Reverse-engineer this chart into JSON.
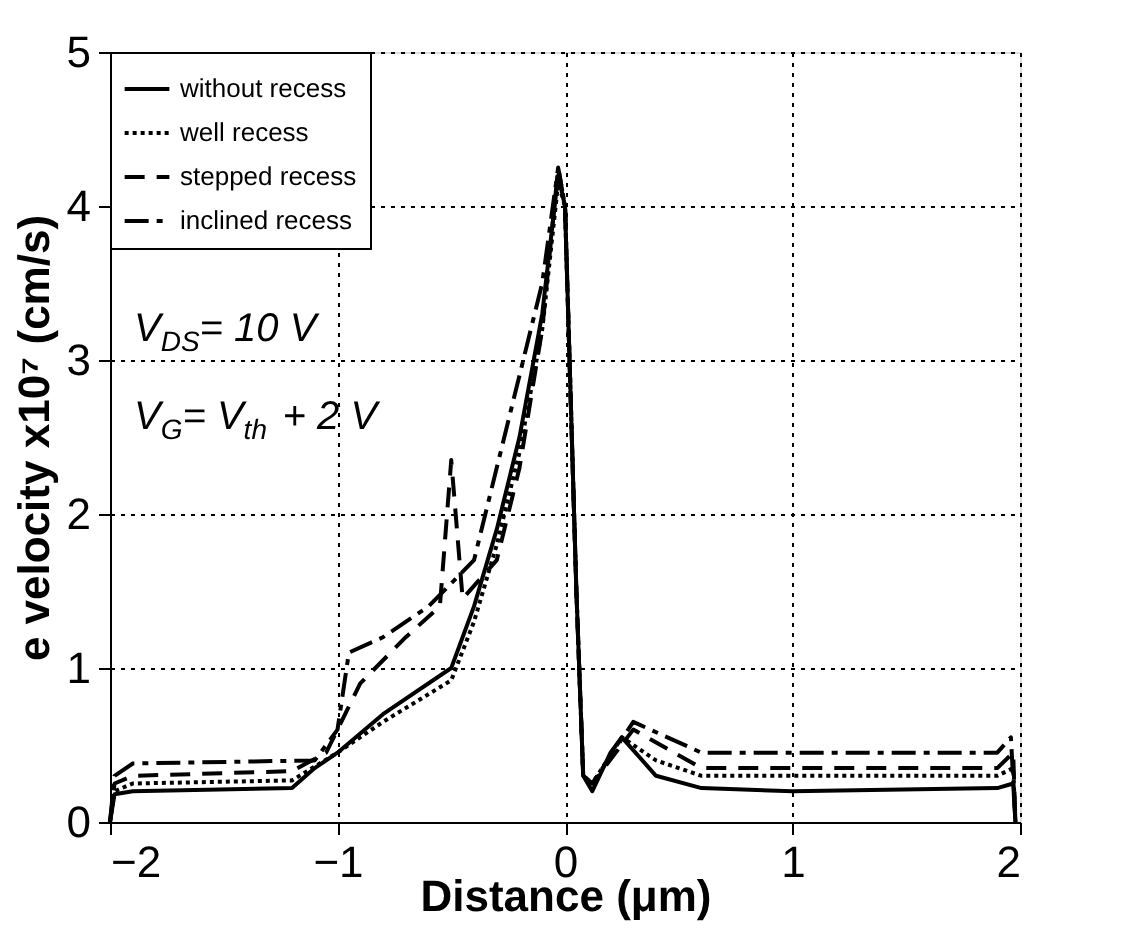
{
  "chart_data": {
    "type": "line",
    "xlabel": "Distance (μm)",
    "ylabel": "e velocity x10⁷ (cm/s)",
    "xlim": [
      -2,
      2
    ],
    "xticks": [
      -2,
      -1,
      0,
      1,
      2
    ],
    "ylim": [
      0,
      5
    ],
    "yticks": [
      0,
      1,
      2,
      3,
      4,
      5
    ],
    "grid": true,
    "legend": "top left",
    "annotations": [
      "V$_{DS}$= 10 V",
      "V$_{G}$= V$_{th}$ + 2 V"
    ],
    "series": [
      {
        "name": "without recess",
        "color": "#000000",
        "line_style": "solid",
        "x": [
          -2,
          -1.98,
          -1.9,
          -1.2,
          -1.1,
          -1.0,
          -0.8,
          -0.5,
          -0.4,
          -0.3,
          -0.2,
          -0.1,
          -0.03,
          0.0,
          0.05,
          0.08,
          0.12,
          0.2,
          0.25,
          0.4,
          0.6,
          1.0,
          1.9,
          1.97,
          1.98
        ],
        "values": [
          0,
          0.18,
          0.2,
          0.22,
          0.35,
          0.45,
          0.7,
          1.0,
          1.4,
          1.9,
          2.5,
          3.3,
          4.2,
          4.0,
          1.5,
          0.3,
          0.2,
          0.45,
          0.55,
          0.3,
          0.22,
          0.2,
          0.22,
          0.25,
          0
        ]
      },
      {
        "name": "well recess",
        "color": "#000000",
        "line_style": "dotted",
        "x": [
          -2,
          -1.98,
          -1.9,
          -1.2,
          -1.0,
          -0.8,
          -0.5,
          -0.4,
          -0.3,
          -0.2,
          -0.1,
          -0.03,
          0.0,
          0.05,
          0.08,
          0.12,
          0.25,
          0.4,
          0.6,
          1.9,
          1.97,
          1.98
        ],
        "values": [
          0,
          0.2,
          0.25,
          0.27,
          0.45,
          0.65,
          0.92,
          1.3,
          1.8,
          2.4,
          3.2,
          4.15,
          4.0,
          1.5,
          0.3,
          0.25,
          0.55,
          0.4,
          0.3,
          0.3,
          0.35,
          0
        ]
      },
      {
        "name": "stepped recess",
        "color": "#000000",
        "line_style": "dashed",
        "x": [
          -2,
          -1.98,
          -1.9,
          -1.2,
          -1.05,
          -0.9,
          -0.7,
          -0.55,
          -0.5,
          -0.45,
          -0.3,
          -0.2,
          -0.1,
          -0.03,
          0.0,
          0.05,
          0.08,
          0.12,
          0.3,
          0.6,
          1.9,
          1.97,
          1.98
        ],
        "values": [
          0,
          0.25,
          0.3,
          0.33,
          0.45,
          0.9,
          1.2,
          1.4,
          2.35,
          1.45,
          1.7,
          2.3,
          3.2,
          4.25,
          4.0,
          1.5,
          0.3,
          0.25,
          0.6,
          0.35,
          0.35,
          0.45,
          0
        ]
      },
      {
        "name": "inclined recess",
        "color": "#000000",
        "line_style": "dashdot",
        "x": [
          -2,
          -1.98,
          -1.9,
          -1.1,
          -1.0,
          -0.95,
          -0.8,
          -0.6,
          -0.4,
          -0.3,
          -0.2,
          -0.1,
          -0.03,
          0.0,
          0.05,
          0.08,
          0.12,
          0.3,
          0.6,
          1.9,
          1.96,
          1.98
        ],
        "values": [
          0,
          0.3,
          0.38,
          0.4,
          0.6,
          1.1,
          1.2,
          1.4,
          1.7,
          2.3,
          2.9,
          3.5,
          4.25,
          4.0,
          1.5,
          0.3,
          0.25,
          0.65,
          0.45,
          0.45,
          0.55,
          0
        ]
      }
    ]
  }
}
